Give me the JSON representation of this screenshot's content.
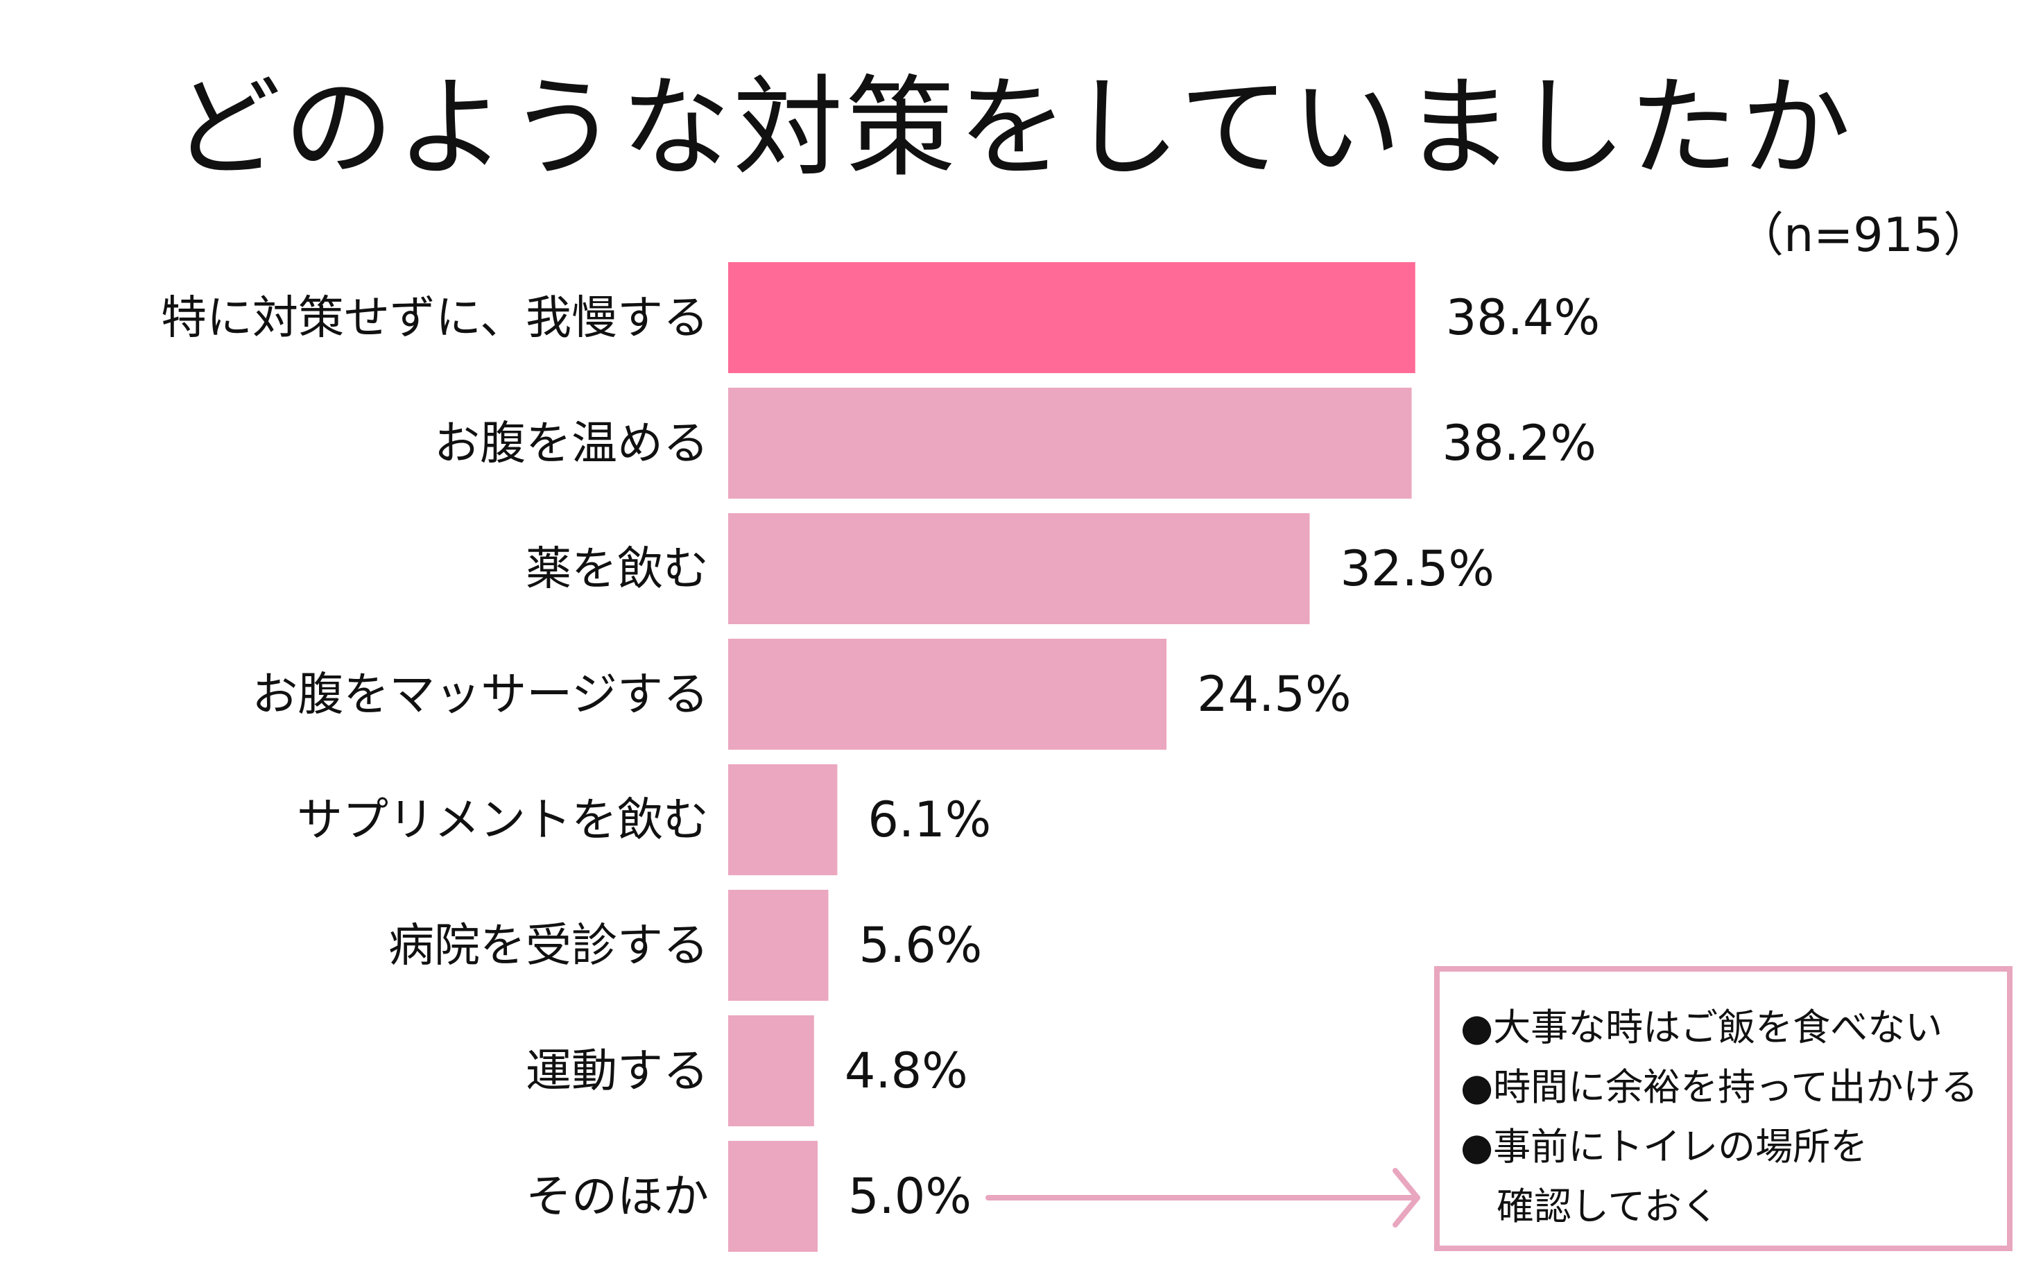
{
  "chart_data": {
    "type": "bar",
    "orientation": "horizontal",
    "title": "どのような対策をしていましたか",
    "sample_size": "（n=915）",
    "categories": [
      "特に対策せずに、我慢する",
      "お腹を温める",
      "薬を飲む",
      "お腹をマッサージする",
      "サプリメントを飲む",
      "病院を受診する",
      "運動する",
      "そのほか"
    ],
    "values": [
      38.4,
      38.2,
      32.5,
      24.5,
      6.1,
      5.6,
      4.8,
      5.0
    ],
    "value_labels": [
      "38.4%",
      "38.2%",
      "32.5%",
      "24.5%",
      "6.1%",
      "5.6%",
      "4.8%",
      "5.0%"
    ],
    "unit": "%",
    "xlim": [
      0,
      45
    ],
    "highlight_index": 0,
    "colors": {
      "highlight": "#ff6b96",
      "default": "#eba7bf",
      "note_border": "#e9a6bf",
      "arrow": "#e9a6bf"
    },
    "grid": false,
    "legend": "none"
  },
  "note": {
    "lines": [
      "●大事な時はご飯を食べない",
      "●時間に余裕を持って出かける",
      "●事前にトイレの場所を",
      "確認しておく"
    ]
  }
}
